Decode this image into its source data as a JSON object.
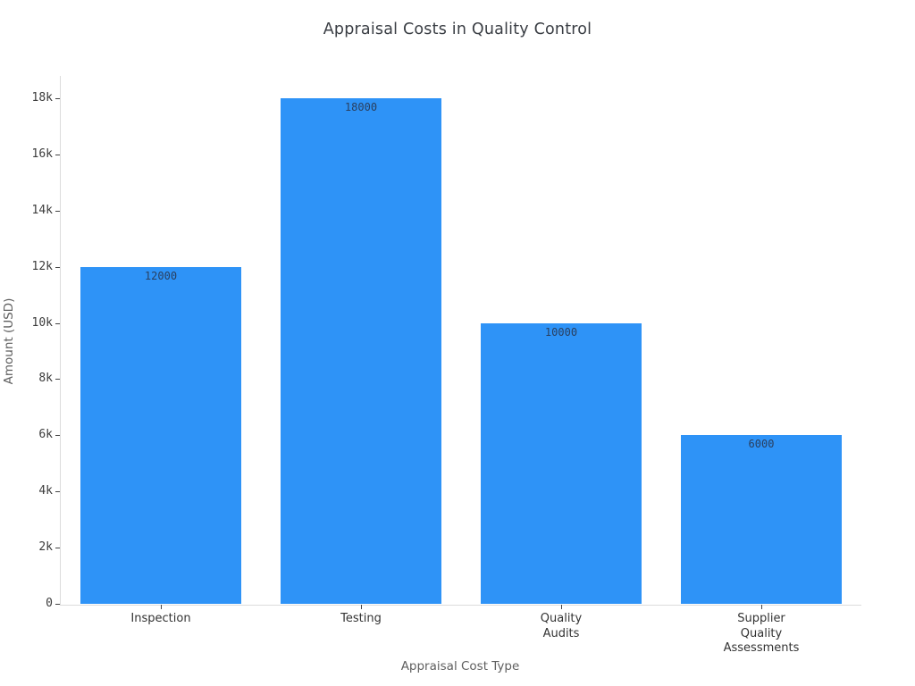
{
  "title": "Appraisal Costs in Quality Control",
  "colors": {
    "background": "#ffffff",
    "bar": "#2e93f7",
    "axis_line": "#dcdcdc",
    "tick_mark": "#444444",
    "tick_label": "#3b3b3b",
    "category_label": "#333333",
    "axis_title": "#5f5f5f",
    "value_label": "#2a3f5f",
    "title_color": "#3a3e44"
  },
  "chart_data": {
    "type": "bar",
    "title": "Appraisal Costs in Quality Control",
    "xlabel": "Appraisal Cost Type",
    "ylabel": "Amount (USD)",
    "categories": [
      "Inspection",
      "Testing",
      "Quality\nAudits",
      "Supplier\nQuality\nAssessments"
    ],
    "values": [
      12000,
      18000,
      10000,
      6000
    ],
    "value_labels": [
      "12000",
      "18000",
      "10000",
      "6000"
    ],
    "ylim": [
      0,
      18000
    ],
    "yticks": {
      "values": [
        0,
        2000,
        4000,
        6000,
        8000,
        10000,
        12000,
        14000,
        16000,
        18000
      ],
      "labels": [
        "0",
        "2k",
        "4k",
        "6k",
        "8k",
        "10k",
        "12k",
        "14k",
        "16k",
        "18k"
      ]
    },
    "grid": false,
    "legend": false,
    "bar_width_fraction": 0.8
  }
}
